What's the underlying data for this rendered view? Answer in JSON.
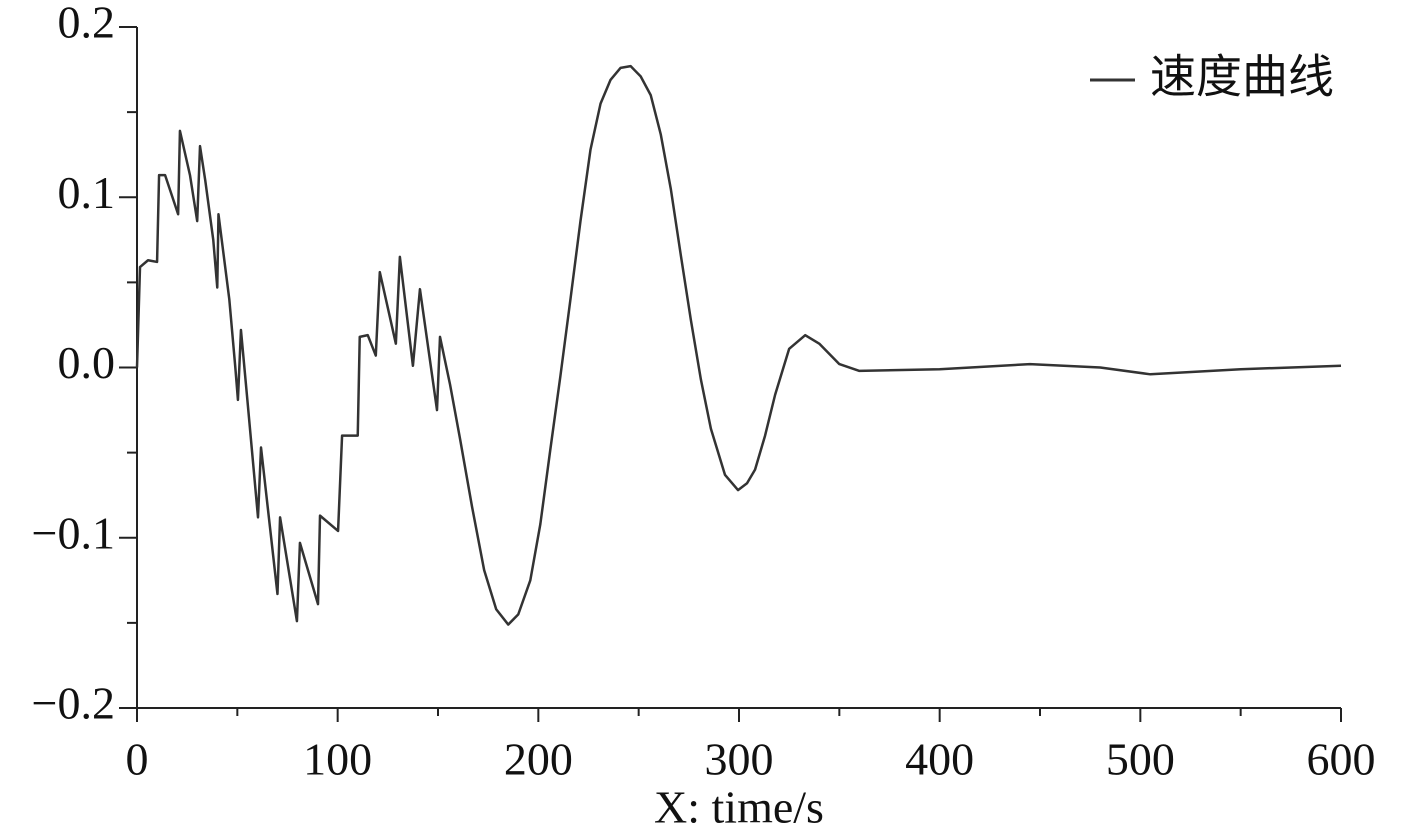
{
  "chart_data": {
    "type": "line",
    "xlabel": "X: time/s",
    "xlim": [
      0,
      600
    ],
    "xticks": [
      0,
      100,
      200,
      300,
      400,
      500,
      600
    ],
    "xminorticks": [
      50,
      150,
      250,
      350,
      450,
      550
    ],
    "ylim": [
      -0.2,
      0.2
    ],
    "yticks": [
      {
        "value": -0.2,
        "label": "−0.2"
      },
      {
        "value": -0.1,
        "label": "−0.1"
      },
      {
        "value": 0,
        "label": "0.0"
      },
      0.1,
      0.2
    ],
    "yminorticks": [
      -0.15,
      -0.05,
      0.05,
      0.15
    ],
    "legend": "upper right",
    "series": [
      {
        "name": "速度曲线",
        "color": "#333333",
        "x": [
          0,
          1.5,
          5.5,
          10,
          11,
          14,
          20.5,
          21.4,
          26.4,
          30,
          31.4,
          34,
          38,
          40,
          40.6,
          46,
          49,
          50.3,
          51.8,
          55,
          60.3,
          61.8,
          70,
          71.3,
          79.7,
          81.2,
          90.2,
          91.2,
          100.2,
          102.2,
          110,
          111,
          115,
          119,
          121,
          129,
          131,
          137.5,
          141,
          149.5,
          151,
          156,
          161,
          167,
          173,
          179,
          185,
          190,
          196,
          201,
          206,
          211,
          216,
          221,
          226,
          231,
          236,
          241,
          246,
          251,
          256,
          261,
          266,
          271,
          276,
          281,
          286,
          293,
          299.5,
          304,
          308,
          313,
          318,
          325,
          333,
          340,
          350,
          360,
          400,
          445,
          480,
          505,
          550,
          600
        ],
        "values": [
          0,
          0.059,
          0.063,
          0.062,
          0.113,
          0.113,
          0.09,
          0.139,
          0.113,
          0.086,
          0.13,
          0.11,
          0.075,
          0.047,
          0.09,
          0.04,
          0.0,
          -0.019,
          0.022,
          -0.019,
          -0.088,
          -0.047,
          -0.133,
          -0.088,
          -0.149,
          -0.103,
          -0.139,
          -0.087,
          -0.096,
          -0.04,
          -0.04,
          0.018,
          0.019,
          0.007,
          0.056,
          0.014,
          0.065,
          0.001,
          0.046,
          -0.025,
          0.018,
          -0.01,
          -0.042,
          -0.082,
          -0.119,
          -0.142,
          -0.151,
          -0.145,
          -0.125,
          -0.092,
          -0.048,
          -0.005,
          0.04,
          0.086,
          0.128,
          0.155,
          0.169,
          0.176,
          0.177,
          0.171,
          0.16,
          0.137,
          0.105,
          0.066,
          0.028,
          -0.007,
          -0.036,
          -0.063,
          -0.072,
          -0.068,
          -0.06,
          -0.04,
          -0.016,
          0.011,
          0.019,
          0.014,
          0.002,
          -0.002,
          -0.001,
          0.002,
          0.0,
          -0.004,
          -0.001,
          0.001
        ]
      }
    ]
  }
}
